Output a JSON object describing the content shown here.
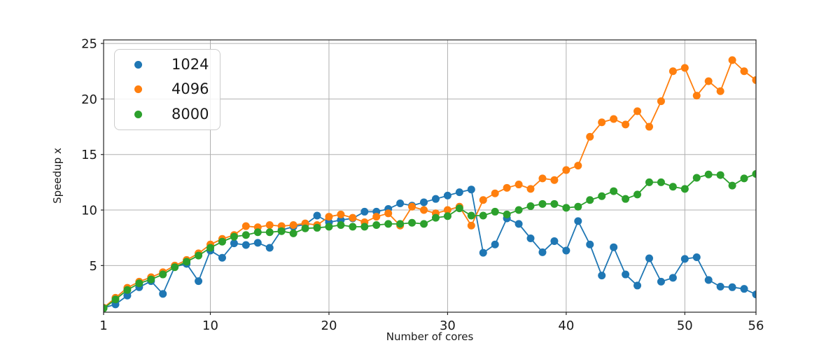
{
  "figure": {
    "title": "",
    "background": "#ffffff",
    "axis_color": "#262626",
    "grid_color": "#b0b0b0",
    "text_color": "#1a1a1a",
    "xlabel": "Number of cores",
    "ylabel": "Speedup x",
    "x_ticks": [
      1,
      10,
      20,
      30,
      40,
      50,
      56
    ],
    "y_ticks": [
      5,
      10,
      15,
      20,
      25
    ]
  },
  "chart_data": {
    "type": "line",
    "title": "",
    "xlabel": "Number of cores",
    "ylabel": "Speedup x",
    "xlim": [
      1,
      56
    ],
    "ylim": [
      0.8,
      25.32
    ],
    "grid": true,
    "legend_position": "upper-left",
    "marker": "circle",
    "x": [
      1,
      2,
      3,
      4,
      5,
      6,
      7,
      8,
      9,
      10,
      11,
      12,
      13,
      14,
      15,
      16,
      17,
      18,
      19,
      20,
      21,
      22,
      23,
      24,
      25,
      26,
      27,
      28,
      29,
      30,
      31,
      32,
      33,
      34,
      35,
      36,
      37,
      38,
      39,
      40,
      41,
      42,
      43,
      44,
      45,
      46,
      47,
      48,
      49,
      50,
      51,
      52,
      53,
      54,
      55,
      56
    ],
    "series": [
      {
        "name": "1024",
        "color": "#1f77b4",
        "values": [
          1.2,
          1.5,
          2.3,
          3.05,
          3.6,
          2.45,
          4.9,
          5.15,
          3.6,
          6.35,
          5.7,
          7.0,
          6.85,
          7.05,
          6.6,
          8.2,
          8.5,
          8.7,
          9.5,
          8.9,
          9.1,
          9.25,
          9.85,
          9.85,
          10.1,
          10.6,
          10.4,
          10.7,
          11.0,
          11.3,
          11.6,
          11.85,
          6.15,
          6.9,
          9.25,
          8.75,
          7.45,
          6.2,
          7.2,
          6.35,
          9.0,
          6.9,
          4.1,
          6.65,
          4.2,
          3.2,
          5.65,
          3.55,
          3.9,
          5.6,
          5.75,
          3.7,
          3.1,
          3.05,
          2.9,
          2.4
        ]
      },
      {
        "name": "4096",
        "color": "#ff7f0e",
        "values": [
          1.2,
          2.1,
          3.0,
          3.55,
          3.95,
          4.4,
          5.0,
          5.5,
          6.1,
          6.9,
          7.4,
          7.75,
          8.55,
          8.45,
          8.65,
          8.55,
          8.65,
          8.8,
          8.65,
          9.4,
          9.6,
          9.3,
          8.9,
          9.4,
          9.7,
          8.6,
          10.3,
          10.0,
          9.7,
          10.0,
          10.3,
          8.6,
          10.9,
          11.5,
          12.0,
          12.3,
          11.9,
          12.85,
          12.7,
          13.6,
          14.0,
          16.6,
          17.9,
          18.2,
          17.7,
          18.9,
          17.5,
          19.8,
          22.5,
          22.8,
          20.3,
          21.6,
          20.7,
          23.5,
          22.5,
          21.7
        ]
      },
      {
        "name": "8000",
        "color": "#2ca02c",
        "values": [
          1.15,
          1.95,
          2.8,
          3.4,
          3.75,
          4.2,
          4.85,
          5.35,
          5.9,
          6.6,
          7.15,
          7.6,
          7.75,
          8.0,
          8.0,
          8.1,
          7.9,
          8.35,
          8.4,
          8.5,
          8.65,
          8.5,
          8.5,
          8.65,
          8.75,
          8.75,
          8.85,
          8.75,
          9.3,
          9.45,
          10.15,
          9.5,
          9.5,
          9.85,
          9.6,
          10.0,
          10.35,
          10.55,
          10.55,
          10.2,
          10.3,
          10.9,
          11.25,
          11.7,
          11.0,
          11.4,
          12.5,
          12.5,
          12.1,
          11.9,
          12.9,
          13.2,
          13.15,
          12.2,
          12.85,
          13.25
        ]
      }
    ]
  }
}
